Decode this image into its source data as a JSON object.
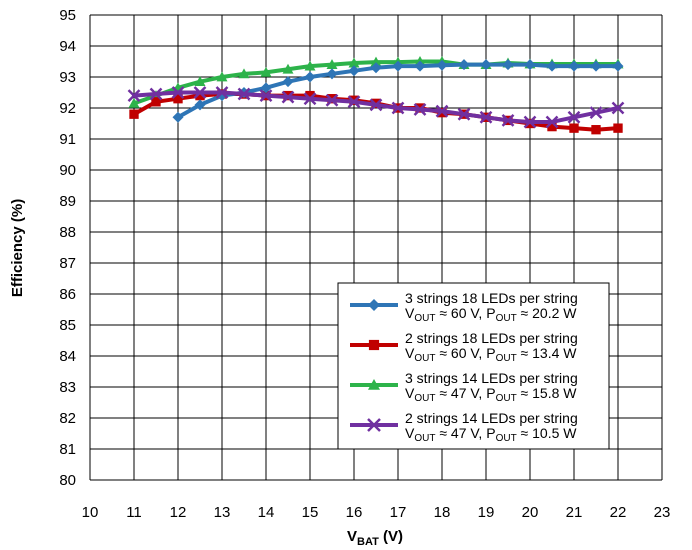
{
  "chart_data": {
    "type": "line",
    "xlabel": {
      "main": "V",
      "sub": "BAT",
      "unit": " (V)"
    },
    "ylabel": "Efficiency (%)",
    "xlim": [
      10,
      23
    ],
    "ylim": [
      80,
      95
    ],
    "xticks": [
      "10",
      "11",
      "12",
      "13",
      "14",
      "15",
      "16",
      "17",
      "18",
      "19",
      "20",
      "21",
      "22",
      "23"
    ],
    "yticks": [
      "80",
      "81",
      "82",
      "83",
      "84",
      "85",
      "86",
      "87",
      "88",
      "89",
      "90",
      "91",
      "92",
      "93",
      "94",
      "95"
    ],
    "grid": true,
    "legend_position": "lower-right",
    "series": [
      {
        "name": "3 strings 18 LEDs per string",
        "line2": {
          "v": "V",
          "vsub": "OUT",
          "vval": " ≈ 60 V, ",
          "p": "P",
          "psub": "OUT",
          "pval": " ≈ 20.2 W"
        },
        "color": "#2e75b6",
        "marker": "diamond",
        "x": [
          12,
          12.5,
          13,
          13.5,
          14,
          14.5,
          15,
          15.5,
          16,
          16.5,
          17,
          17.5,
          18,
          18.5,
          19,
          19.5,
          20,
          20.5,
          21,
          21.5,
          22
        ],
        "y": [
          91.7,
          92.1,
          92.4,
          92.5,
          92.65,
          92.85,
          93.0,
          93.1,
          93.2,
          93.3,
          93.35,
          93.35,
          93.38,
          93.4,
          93.4,
          93.4,
          93.4,
          93.35,
          93.35,
          93.35,
          93.35
        ]
      },
      {
        "name": "2 strings 18 LEDs per string",
        "line2": {
          "v": "V",
          "vsub": "OUT",
          "vval": " ≈ 60 V, ",
          "p": "P",
          "psub": "OUT",
          "pval": " ≈ 13.4 W"
        },
        "color": "#c00000",
        "marker": "square",
        "x": [
          11,
          11.5,
          12,
          12.5,
          13,
          13.5,
          14,
          14.5,
          15,
          15.5,
          16,
          16.5,
          17,
          17.5,
          18,
          18.5,
          19,
          19.5,
          20,
          20.5,
          21,
          21.5,
          22
        ],
        "y": [
          91.8,
          92.2,
          92.3,
          92.4,
          92.45,
          92.45,
          92.4,
          92.4,
          92.4,
          92.3,
          92.25,
          92.15,
          92.0,
          92.0,
          91.85,
          91.8,
          91.7,
          91.6,
          91.5,
          91.4,
          91.35,
          91.3,
          91.35
        ]
      },
      {
        "name": "3 strings 14 LEDs per string",
        "line2": {
          "v": "V",
          "vsub": "OUT",
          "vval": " ≈ 47 V, ",
          "p": "P",
          "psub": "OUT",
          "pval": " ≈ 15.8 W"
        },
        "color": "#2db34a",
        "marker": "triangle",
        "x": [
          11,
          11.5,
          12,
          12.5,
          13,
          13.5,
          14,
          14.5,
          15,
          15.5,
          16,
          16.5,
          17,
          17.5,
          18,
          18.5,
          19,
          19.5,
          20,
          20.5,
          21,
          21.5,
          22
        ],
        "y": [
          92.15,
          92.4,
          92.65,
          92.85,
          93.0,
          93.1,
          93.15,
          93.25,
          93.35,
          93.4,
          93.45,
          93.48,
          93.48,
          93.5,
          93.5,
          93.4,
          93.4,
          93.45,
          93.42,
          93.42,
          93.42,
          93.42,
          93.42
        ]
      },
      {
        "name": "2 strings 14 LEDs per string",
        "line2": {
          "v": "V",
          "vsub": "OUT",
          "vval": " ≈ 47 V, ",
          "p": "P",
          "psub": "OUT",
          "pval": " ≈ 10.5 W"
        },
        "color": "#7030a0",
        "marker": "x",
        "x": [
          11,
          11.5,
          12,
          12.5,
          13,
          13.5,
          14,
          14.5,
          15,
          15.5,
          16,
          16.5,
          17,
          17.5,
          18,
          18.5,
          19,
          19.5,
          20,
          20.5,
          21,
          21.5,
          22
        ],
        "y": [
          92.4,
          92.45,
          92.5,
          92.5,
          92.5,
          92.45,
          92.4,
          92.35,
          92.3,
          92.25,
          92.2,
          92.1,
          92.0,
          91.95,
          91.9,
          91.8,
          91.7,
          91.6,
          91.55,
          91.55,
          91.7,
          91.85,
          92.0
        ]
      }
    ]
  }
}
